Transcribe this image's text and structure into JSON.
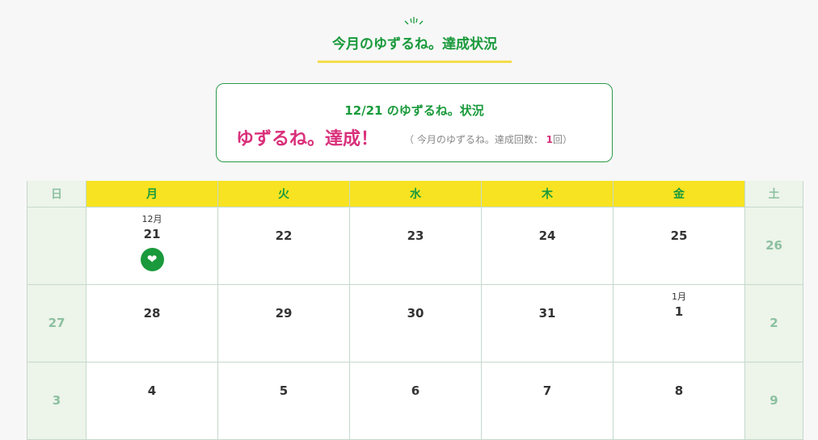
{
  "page": {
    "title": "今月のゆずるね。達成状況"
  },
  "status": {
    "date_label": "12/21 のゆずるね。状況",
    "result": "ゆずるね。達成！",
    "count_prefix": "（ 今月のゆずるね。達成回数：",
    "count": "1",
    "count_suffix": "回）"
  },
  "calendar": {
    "weekdays": [
      "日",
      "月",
      "火",
      "水",
      "木",
      "金",
      "土"
    ],
    "weeks": [
      [
        {
          "day": ""
        },
        {
          "month": "12月",
          "day": "21",
          "achieved": true
        },
        {
          "day": "22"
        },
        {
          "day": "23"
        },
        {
          "day": "24"
        },
        {
          "day": "25"
        },
        {
          "day": "26"
        }
      ],
      [
        {
          "day": "27"
        },
        {
          "day": "28"
        },
        {
          "day": "29"
        },
        {
          "day": "30"
        },
        {
          "day": "31"
        },
        {
          "month": "1月",
          "day": "1"
        },
        {
          "day": "2"
        }
      ],
      [
        {
          "day": "3"
        },
        {
          "day": "4"
        },
        {
          "day": "5"
        },
        {
          "day": "6"
        },
        {
          "day": "7"
        },
        {
          "day": "8"
        },
        {
          "day": "9"
        }
      ]
    ]
  },
  "colors": {
    "green": "#1a9a3c",
    "pink": "#d9307a",
    "yellow": "#f7e321",
    "weekend_bg": "#edf4ea"
  },
  "icons": {
    "achieved": "leaf-heart-badge-icon",
    "title_deco": "sparkle-icon"
  }
}
